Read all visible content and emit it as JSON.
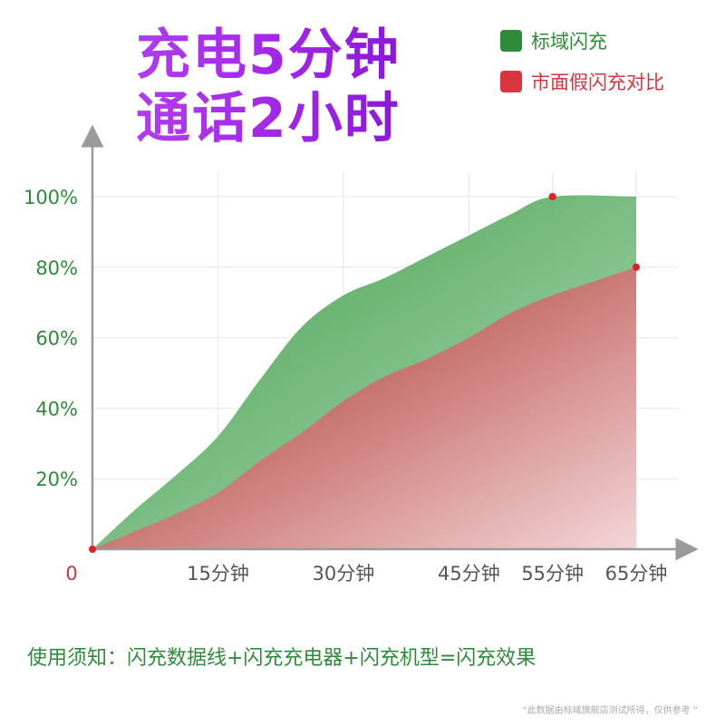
{
  "headline": {
    "line1": "充电5分钟",
    "line2": "通话2小时"
  },
  "colors": {
    "brand": "#2e8b3a",
    "compare": "#cc3344",
    "axis_text": "#2e8b3a",
    "zero_text": "#cc3344"
  },
  "chart_data": {
    "type": "area",
    "x_unit": "分钟",
    "x_ticks": [
      {
        "value": 15,
        "label": "15分钟"
      },
      {
        "value": 30,
        "label": "30分钟"
      },
      {
        "value": 45,
        "label": "45分钟"
      },
      {
        "value": 55,
        "label": "55分钟"
      },
      {
        "value": 65,
        "label": "65分钟"
      }
    ],
    "y_ticks": [
      {
        "value": 20,
        "label": "20%"
      },
      {
        "value": 40,
        "label": "40%"
      },
      {
        "value": 60,
        "label": "60%"
      },
      {
        "value": 80,
        "label": "80%"
      },
      {
        "value": 100,
        "label": "100%"
      }
    ],
    "origin_label": "0",
    "xlim": [
      0,
      65
    ],
    "ylim": [
      0,
      100
    ],
    "grid": true,
    "legend_position": "top-right",
    "series": [
      {
        "name": "标域闪充",
        "color": "#2e8b3a",
        "points": [
          [
            0,
            0
          ],
          [
            5,
            11
          ],
          [
            10,
            21
          ],
          [
            15,
            32
          ],
          [
            20,
            48
          ],
          [
            25,
            63
          ],
          [
            30,
            72
          ],
          [
            35,
            77
          ],
          [
            40,
            83
          ],
          [
            45,
            89
          ],
          [
            50,
            95
          ],
          [
            55,
            100
          ],
          [
            65,
            100
          ]
        ],
        "marker_at": [
          55,
          100
        ]
      },
      {
        "name": "市面假闪充对比",
        "color": "#cc3344",
        "points": [
          [
            0,
            0
          ],
          [
            5,
            5
          ],
          [
            10,
            10
          ],
          [
            15,
            16
          ],
          [
            20,
            25
          ],
          [
            25,
            33
          ],
          [
            30,
            42
          ],
          [
            35,
            49
          ],
          [
            40,
            54
          ],
          [
            45,
            60
          ],
          [
            50,
            67
          ],
          [
            55,
            72
          ],
          [
            60,
            76
          ],
          [
            65,
            80
          ]
        ],
        "marker_at": [
          65,
          80
        ]
      }
    ]
  },
  "footer": {
    "note": "使用须知：闪充数据线+闪充充电器+闪充机型=闪充效果",
    "source": "“此数据由标域旗舰店测试所得，仅供参考 ”"
  }
}
